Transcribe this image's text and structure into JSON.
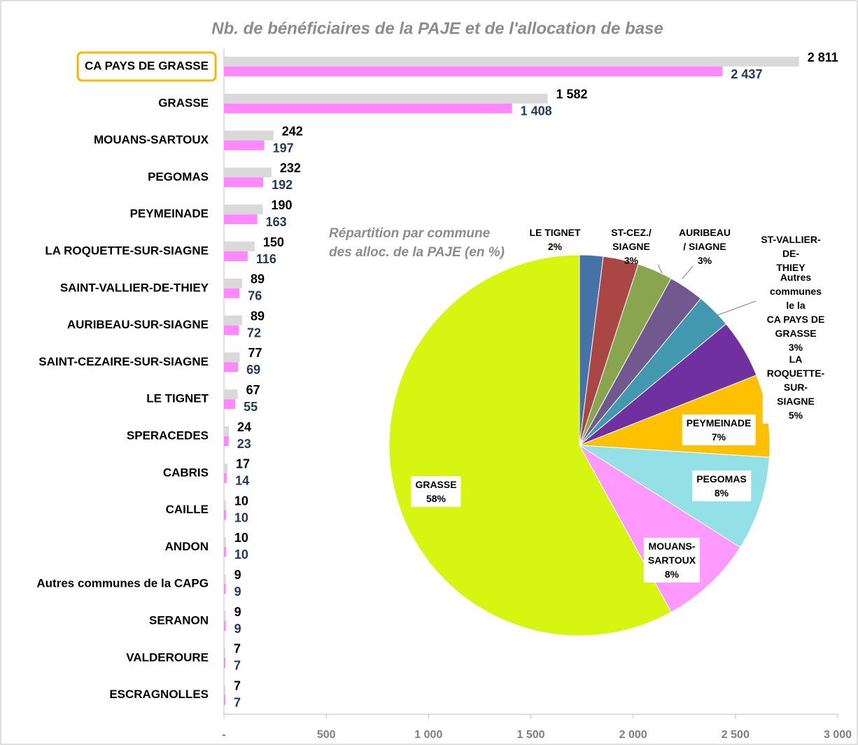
{
  "chart_data": [
    {
      "type": "bar",
      "orientation": "horizontal",
      "title": "Nb. de bénéficiaires de la PAJE et de l'allocation de base",
      "categories": [
        "CA PAYS DE GRASSE",
        "GRASSE",
        "MOUANS-SARTOUX",
        "PEGOMAS",
        "PEYMEINADE",
        "LA ROQUETTE-SUR-SIAGNE",
        "SAINT-VALLIER-DE-THIEY",
        "AURIBEAU-SUR-SIAGNE",
        "SAINT-CEZAIRE-SUR-SIAGNE",
        "LE TIGNET",
        "SPERACEDES",
        "CABRIS",
        "CAILLE",
        "ANDON",
        "Autres communes de la CAPG",
        "SERANON",
        "VALDEROURE",
        "ESCRAGNOLLES"
      ],
      "series": [
        {
          "color": "#d9d9d9",
          "label_color": "#000000",
          "values": [
            2811,
            1582,
            242,
            232,
            190,
            150,
            89,
            89,
            77,
            67,
            24,
            17,
            10,
            10,
            9,
            9,
            7,
            7
          ],
          "value_labels": [
            "2 811",
            "1 582",
            "242",
            "232",
            "190",
            "150",
            "89",
            "89",
            "77",
            "67",
            "24",
            "17",
            "10",
            "10",
            "9",
            "9",
            "7",
            "7"
          ]
        },
        {
          "color": "#ff88ff",
          "label_color": "#1f3a5a",
          "values": [
            2437,
            1408,
            197,
            192,
            163,
            116,
            76,
            72,
            69,
            55,
            23,
            14,
            10,
            10,
            9,
            9,
            7,
            7
          ],
          "value_labels": [
            "2 437",
            "1 408",
            "197",
            "192",
            "163",
            "116",
            "76",
            "72",
            "69",
            "55",
            "23",
            "14",
            "10",
            "10",
            "9",
            "9",
            "7",
            "7"
          ]
        }
      ],
      "highlight": "CA PAYS DE GRASSE",
      "highlight_color": "#f5b800",
      "xlim": [
        0,
        3000
      ],
      "xticks": [
        {
          "value": 0,
          "label": "-"
        },
        500,
        {
          "value": 1000,
          "label": "1 000"
        },
        {
          "value": 1500,
          "label": "1 500"
        },
        {
          "value": 2000,
          "label": "2 000"
        },
        {
          "value": 2500,
          "label": "2 500"
        },
        {
          "value": 3000,
          "label": "3 000"
        }
      ]
    },
    {
      "type": "pie",
      "title": "Répartition par commune\ndes alloc. de la PAJE (en %)",
      "categories": [
        "LE TIGNET",
        "ST-CEZ./\nSIAGNE",
        "AURIBEAU\n/ SIAGNE",
        "ST-VALLIER-DE-\nTHIEY",
        "Autres\ncommunes le la\nCA PAYS DE\nGRASSE",
        "LA ROQUETTE-\nSUR-SIAGNE",
        "PEYMEINADE",
        "PEGOMAS",
        "MOUANS-\nSARTOUX",
        "GRASSE"
      ],
      "values": [
        2,
        3,
        3,
        3,
        3,
        5,
        7,
        8,
        8,
        58
      ],
      "value_labels": [
        "2%",
        "3%",
        "3%",
        null,
        "3%",
        "5%",
        "7%",
        "8%",
        "8%",
        "58%"
      ],
      "colors": [
        "#4572a7",
        "#aa4643",
        "#89a54e",
        "#71588f",
        "#4198af",
        "#7030a0",
        "#ffc000",
        "#93e1e6",
        "#ff99ff",
        "#d6f511"
      ]
    }
  ]
}
